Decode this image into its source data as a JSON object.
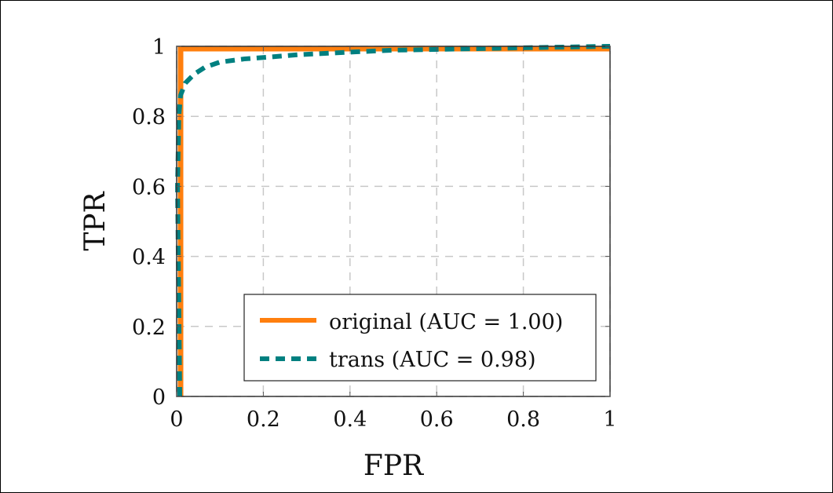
{
  "chart_data": {
    "type": "line",
    "title": "",
    "xlabel": "FPR",
    "ylabel": "TPR",
    "xlim": [
      0,
      1
    ],
    "ylim": [
      0,
      1
    ],
    "xticks": [
      "0",
      "0.2",
      "0.4",
      "0.6",
      "0.8",
      "1"
    ],
    "yticks": [
      "0",
      "0.2",
      "0.4",
      "0.6",
      "0.8",
      "1"
    ],
    "grid": true,
    "legend_position": "bottom-right",
    "series": [
      {
        "name": "original (AUC = 1.00)",
        "color": "#ff7f0e",
        "style": "solid",
        "x": [
          0,
          0,
          1
        ],
        "y": [
          0,
          1,
          1
        ]
      },
      {
        "name": "trans (AUC = 0.98)",
        "color": "#008080",
        "style": "dashed",
        "x": [
          0,
          0.002,
          0.005,
          0.009,
          0.02,
          0.04,
          0.065,
          0.1,
          0.156,
          0.21,
          0.28,
          0.41,
          0.5,
          0.68,
          0.85,
          1
        ],
        "y": [
          0,
          0.6,
          0.8,
          0.86,
          0.895,
          0.92,
          0.94,
          0.955,
          0.964,
          0.969,
          0.976,
          0.984,
          0.989,
          0.993,
          0.997,
          1
        ]
      }
    ]
  }
}
